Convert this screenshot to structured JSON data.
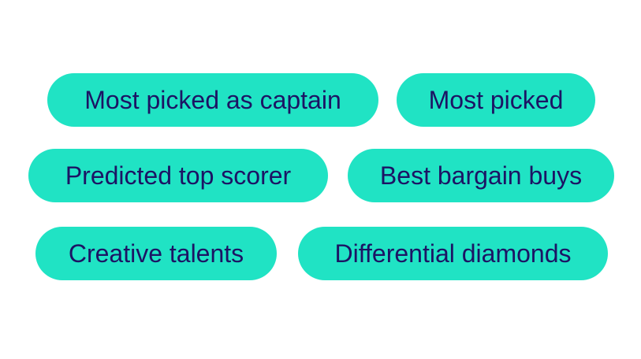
{
  "chips": [
    {
      "label": "Most picked as captain"
    },
    {
      "label": "Most picked"
    },
    {
      "label": "Predicted top scorer"
    },
    {
      "label": "Best bargain buys"
    },
    {
      "label": "Creative talents"
    },
    {
      "label": "Differential diamonds"
    }
  ],
  "colors": {
    "chip_background": "#20e3c4",
    "chip_text": "#1c1464",
    "page_background": "#ffffff"
  }
}
